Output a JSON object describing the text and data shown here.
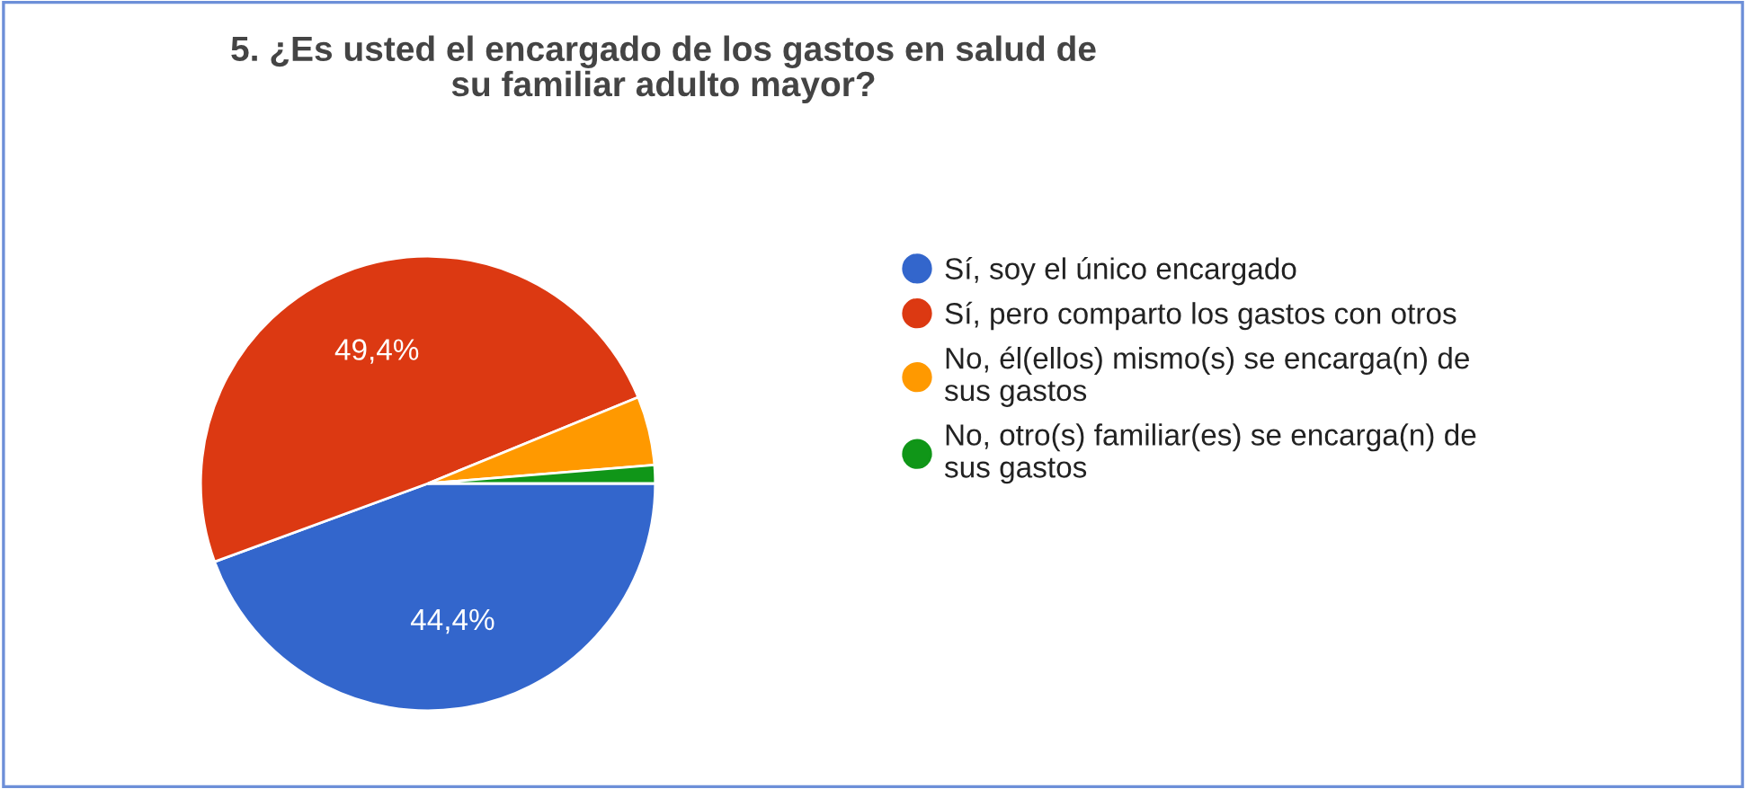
{
  "chart_data": {
    "type": "pie",
    "title": "5. ¿Es usted el encargado de los gastos en salud de\nsu familiar adulto mayor?",
    "categories": [
      "Sí, soy el único encargado",
      "Sí, pero comparto los gastos con otros",
      "No, él(ellos) mismo(s) se encarga(n) de\nsus gastos",
      "No, otro(s) familiar(es) se encarga(n) de\nsus gastos"
    ],
    "values": [
      44.4,
      49.4,
      4.9,
      1.3
    ],
    "colors": [
      "#3366cc",
      "#dc3912",
      "#ff9900",
      "#109618"
    ],
    "value_labels": [
      "44,4%",
      "49,4%",
      null,
      null
    ],
    "legend": "right"
  }
}
